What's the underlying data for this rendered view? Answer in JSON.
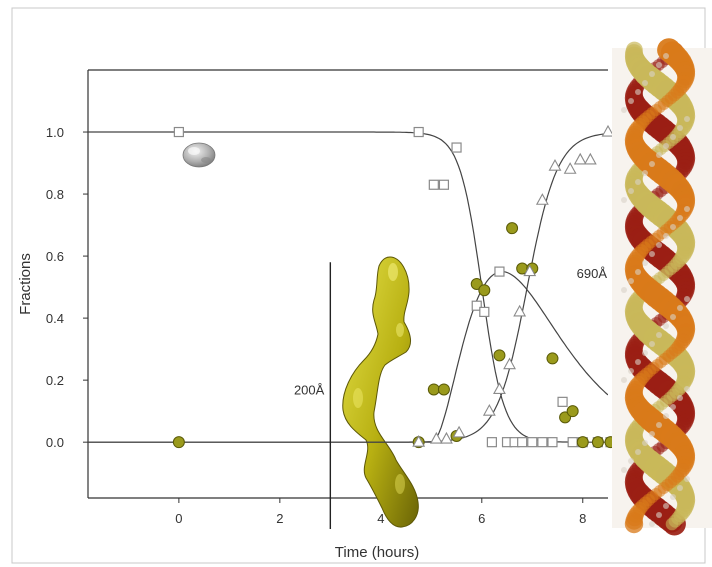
{
  "chart_data": {
    "type": "scatter",
    "title": "",
    "xlabel": "Time (hours)",
    "ylabel": "Fractions",
    "xlim": [
      -1.8,
      8.5
    ],
    "ylim": [
      -0.18,
      1.2
    ],
    "xticks": [
      "0",
      "2",
      "4",
      "6",
      "8"
    ],
    "xtick_values": [
      0,
      2,
      4,
      6,
      8
    ],
    "yticks": [
      "0.0",
      "0.2",
      "0.4",
      "0.6",
      "0.8",
      "1.0"
    ],
    "ytick_values": [
      0.0,
      0.2,
      0.4,
      0.6,
      0.8,
      1.0
    ],
    "grid": false,
    "legend": "none",
    "series": [
      {
        "marker": "square",
        "color": "#9a9a9a",
        "x": [
          0,
          4.75,
          5.05,
          5.25,
          5.5,
          5.9,
          6.05,
          6.2,
          6.35,
          6.5,
          6.65,
          6.8,
          7.0,
          7.2,
          7.4,
          7.6,
          7.8,
          8.0,
          8.3,
          8.55
        ],
        "y": [
          1.0,
          1.0,
          0.83,
          0.83,
          0.95,
          0.44,
          0.42,
          0.0,
          0.55,
          0.0,
          0.0,
          0.0,
          0.0,
          0.0,
          0.0,
          0.13,
          0.0,
          0.0,
          0.0,
          0.0
        ]
      },
      {
        "marker": "circle",
        "color": "#8a8a10",
        "x": [
          0,
          4.75,
          5.05,
          5.25,
          5.5,
          5.9,
          6.05,
          6.35,
          6.6,
          6.8,
          7.0,
          7.4,
          7.65,
          7.8,
          8.0,
          8.3,
          8.55
        ],
        "y": [
          0.0,
          0.0,
          0.17,
          0.17,
          0.02,
          0.51,
          0.49,
          0.28,
          0.69,
          0.56,
          0.56,
          0.27,
          0.08,
          0.1,
          0.0,
          0.0,
          0.0
        ]
      },
      {
        "marker": "triangle",
        "color": "#9a9a9a",
        "x": [
          4.75,
          5.1,
          5.3,
          5.55,
          6.15,
          6.35,
          6.55,
          6.75,
          6.95,
          7.2,
          7.45,
          7.75,
          7.95,
          8.15,
          8.5
        ],
        "y": [
          0.0,
          0.01,
          0.01,
          0.03,
          0.1,
          0.17,
          0.25,
          0.42,
          0.55,
          0.78,
          0.89,
          0.88,
          0.91,
          0.91,
          1.0
        ]
      }
    ],
    "fit_curves": [
      {
        "shape": "decreasing",
        "midpoint": 6.0,
        "width": 0.22
      },
      {
        "shape": "rising",
        "midpoint": 6.9,
        "width": 0.3
      },
      {
        "shape": "transient",
        "start": 5.0,
        "peak": 6.4,
        "peak_value": 0.55
      }
    ],
    "scale_bars": [
      {
        "label": "200Å",
        "x": 3.0,
        "y_top": 0.58,
        "y_bottom": -0.28
      },
      {
        "label": "690Å",
        "x": 8.6,
        "y_top": 0.77,
        "y_bottom": 0.25
      }
    ]
  }
}
